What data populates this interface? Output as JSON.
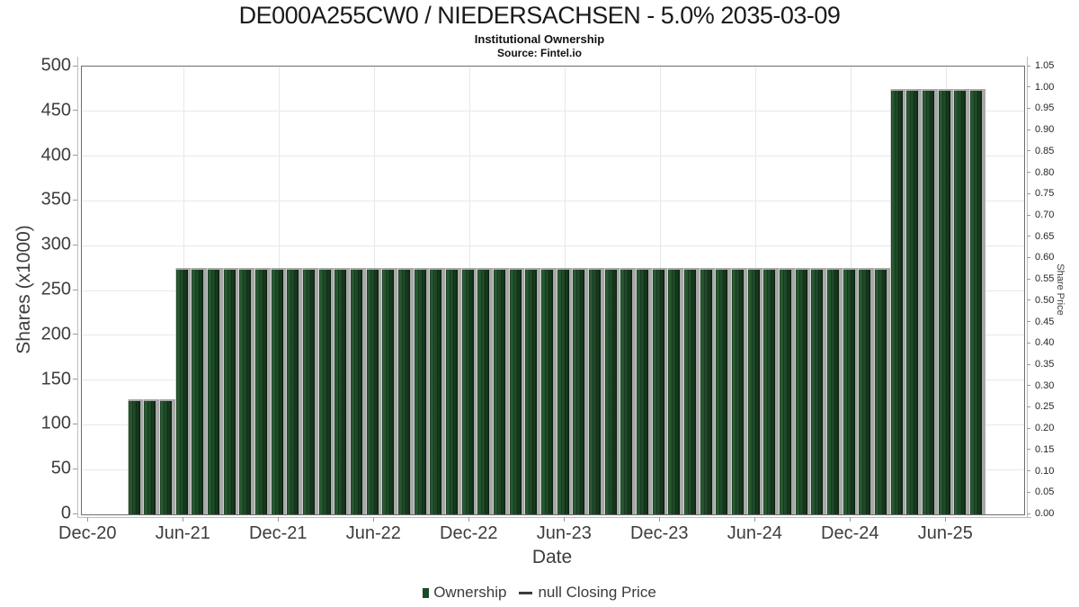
{
  "colors": {
    "bar_green": "#1d4a26",
    "bar_shadow_gray": "#a8a8a8",
    "grid": "#e8e8e8",
    "frame": "#6e6e6e",
    "axis_line": "#bdbdbd",
    "tick_text": "#3d3d3d",
    "title_text": "#1a1a1a"
  },
  "chart_data": {
    "type": "bar",
    "title": "DE000A255CW0 / NIEDERSACHSEN - 5.0% 2035-03-09",
    "subtitle": "Institutional Ownership",
    "source": "Source: Fintel.io",
    "xlabel": "Date",
    "ylabel_left": "Shares (x1000)",
    "ylabel_right": "Share Price",
    "ylim_left": [
      0,
      500
    ],
    "yticks_left": [
      0,
      50,
      100,
      150,
      200,
      250,
      300,
      350,
      400,
      450,
      500
    ],
    "ylim_right": [
      0,
      1.05
    ],
    "yticks_right": [
      "0.00",
      "0.05",
      "0.10",
      "0.15",
      "0.20",
      "0.25",
      "0.30",
      "0.35",
      "0.40",
      "0.45",
      "0.50",
      "0.55",
      "0.60",
      "0.65",
      "0.70",
      "0.75",
      "0.80",
      "0.85",
      "0.90",
      "0.95",
      "1.00",
      "1.05"
    ],
    "xticks": [
      "Dec-20",
      "Jun-21",
      "Dec-21",
      "Jun-22",
      "Dec-22",
      "Jun-23",
      "Dec-23",
      "Jun-24",
      "Dec-24",
      "Jun-25"
    ],
    "grid": true,
    "legend_position": "bottom",
    "categories": [
      "Mar-21",
      "Apr-21",
      "May-21",
      "Jun-21",
      "Jul-21",
      "Aug-21",
      "Sep-21",
      "Oct-21",
      "Nov-21",
      "Dec-21",
      "Jan-22",
      "Feb-22",
      "Mar-22",
      "Apr-22",
      "May-22",
      "Jun-22",
      "Jul-22",
      "Aug-22",
      "Sep-22",
      "Oct-22",
      "Nov-22",
      "Dec-22",
      "Jan-23",
      "Feb-23",
      "Mar-23",
      "Apr-23",
      "May-23",
      "Jun-23",
      "Jul-23",
      "Aug-23",
      "Sep-23",
      "Oct-23",
      "Nov-23",
      "Dec-23",
      "Jan-24",
      "Feb-24",
      "Mar-24",
      "Apr-24",
      "May-24",
      "Jun-24",
      "Jul-24",
      "Aug-24",
      "Sep-24",
      "Oct-24",
      "Nov-24",
      "Dec-24",
      "Jan-25",
      "Feb-25",
      "Mar-25",
      "Apr-25",
      "May-25",
      "Jun-25",
      "Jul-25",
      "Aug-25"
    ],
    "series": [
      {
        "name": "Ownership",
        "type": "bar",
        "color": "#1d4a26",
        "axis": "left",
        "values": [
          129,
          129,
          129,
          275,
          275,
          275,
          275,
          275,
          275,
          275,
          275,
          275,
          275,
          275,
          275,
          275,
          275,
          275,
          275,
          275,
          275,
          275,
          275,
          275,
          275,
          275,
          275,
          275,
          275,
          275,
          275,
          275,
          275,
          275,
          275,
          275,
          275,
          275,
          275,
          275,
          275,
          275,
          275,
          275,
          275,
          275,
          275,
          275,
          475,
          475,
          475,
          475,
          475,
          475
        ]
      },
      {
        "name": "null Closing Price",
        "type": "line",
        "color": "#3b3b3b",
        "axis": "right",
        "values": []
      }
    ]
  },
  "legend": {
    "items": [
      {
        "label": "Ownership",
        "marker": "square",
        "color": "#1d4a26"
      },
      {
        "label": "null Closing Price",
        "marker": "dash",
        "color": "#3b3b3b"
      }
    ]
  }
}
